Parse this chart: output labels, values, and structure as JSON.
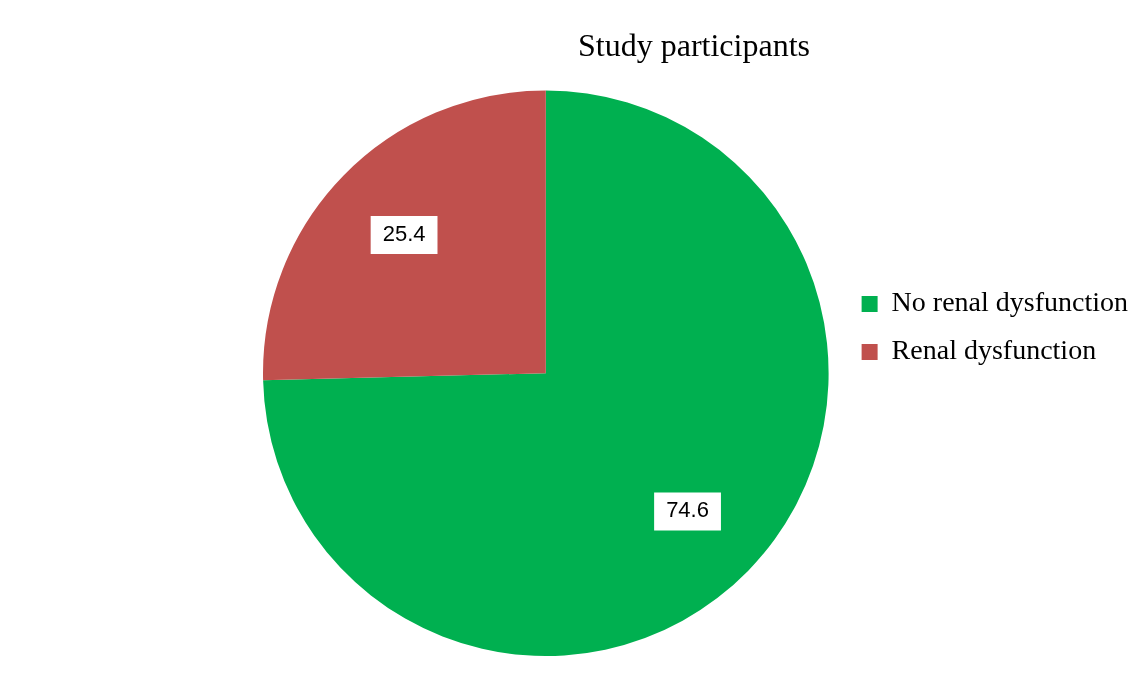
{
  "chart_data": {
    "type": "pie",
    "title": "Study participants",
    "categories": [
      "No renal dysfunction",
      "Renal dysfunction"
    ],
    "values": [
      74.6,
      25.4
    ],
    "colors": [
      "#00b050",
      "#c0504d"
    ],
    "data_labels": true,
    "legend": "right"
  }
}
